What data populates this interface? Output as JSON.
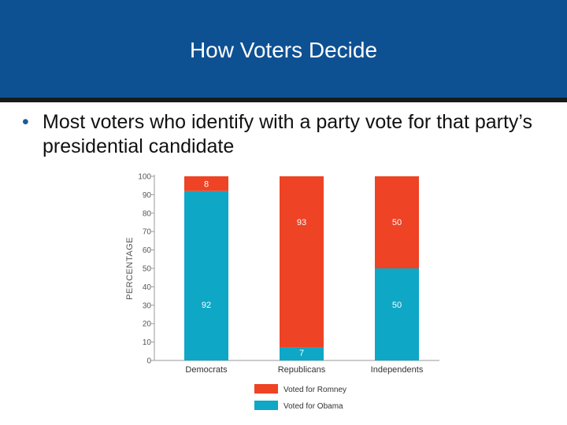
{
  "slide": {
    "title": "How Voters Decide",
    "bullet": "Most voters who identify with a party vote for that party’s presidential candidate"
  },
  "colors": {
    "header_bg": "#0e5193",
    "romney": "#ee4325",
    "obama": "#0ea7c6",
    "bullet": "#1f5a9a"
  },
  "chart_data": {
    "type": "bar",
    "stacked": true,
    "categories": [
      "Democrats",
      "Republicans",
      "Independents"
    ],
    "series": [
      {
        "name": "Voted for Obama",
        "values": [
          92,
          7,
          50
        ],
        "color": "#0ea7c6"
      },
      {
        "name": "Voted for Romney",
        "values": [
          8,
          93,
          50
        ],
        "color": "#ee4325"
      }
    ],
    "ylabel": "PERCENTAGE",
    "xlabel": "",
    "title": "",
    "ylim": [
      0,
      100
    ],
    "yticks": [
      0,
      10,
      20,
      30,
      40,
      50,
      60,
      70,
      80,
      90,
      100
    ],
    "grid": false,
    "legend": [
      "Voted for Romney",
      "Voted for Obama"
    ],
    "legend_position": "bottom"
  }
}
